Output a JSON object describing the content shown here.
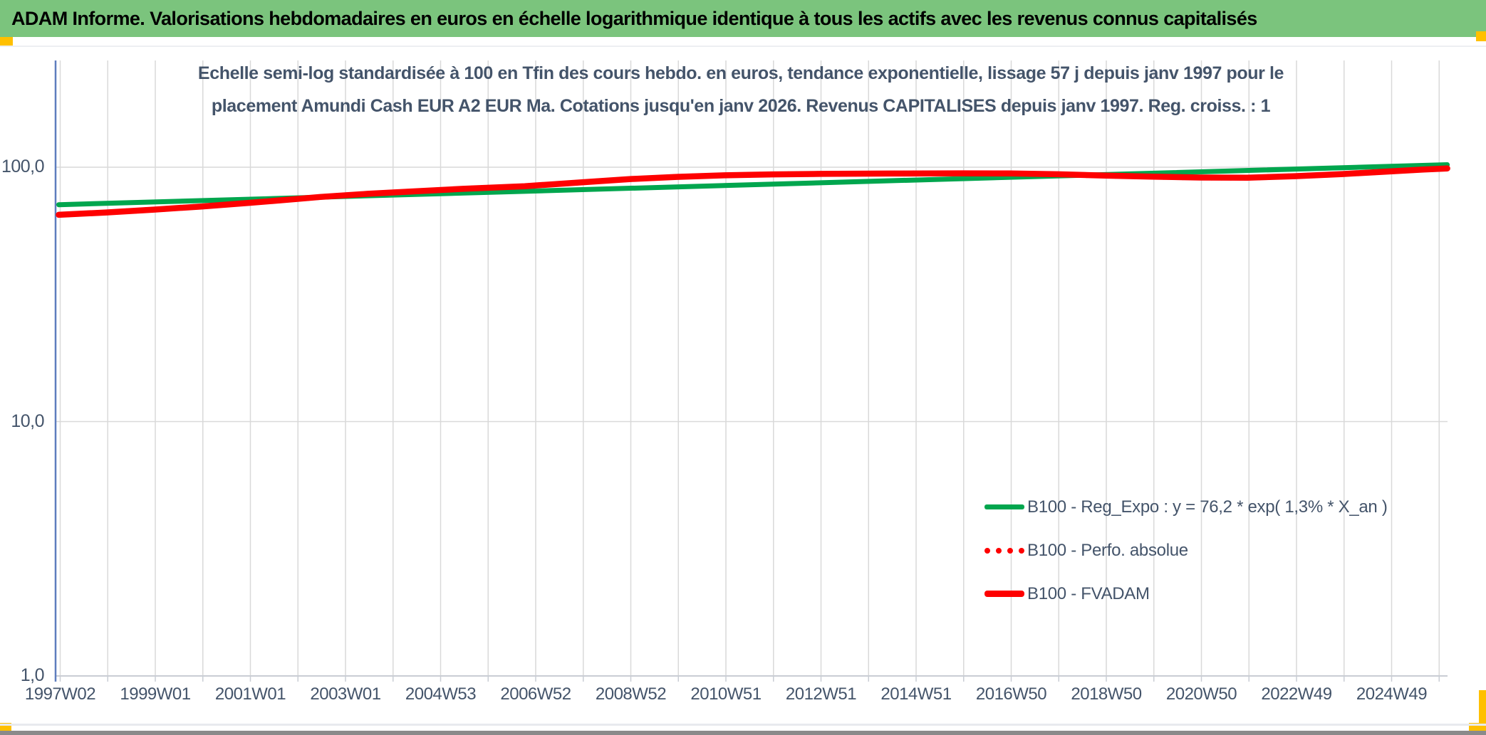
{
  "banner": {
    "text": "ADAM Informe. Valorisations hebdomadaires en euros en échelle logarithmique identique à tous les actifs avec les revenus connus capitalisés"
  },
  "header": {
    "title_line1": "Echelle semi-log standardisée à 100 en Tfin des cours hebdo. en euros, tendance exponentielle, lissage 57 j depuis janv 1997 pour le",
    "title_line2": "placement Amundi Cash EUR A2 EUR Ma. Cotations jusqu'en janv 2026. Revenus CAPITALISES depuis janv 1997. Reg. croiss. : 1"
  },
  "colors": {
    "banner_green": "#7BC47D",
    "accent_yellow": "#FFC000",
    "text_slate": "#44546A",
    "gridline": "#D9D9D9",
    "axis_blue": "#5E7DBE",
    "axis_gray": "#C9CDD4",
    "series_green": "#00A64E",
    "series_red": "#FE0000",
    "bottom_bar_gray": "#8A8A8A"
  },
  "chart_data": {
    "type": "line",
    "title": "Echelle semi-log standardisée à 100 en Tfin des cours hebdo. en euros, tendance exponentielle, lissage 57 j depuis janv 1997 pour le placement Amundi Cash EUR A2 EUR Ma. Cotations jusqu'en janv 2026. Revenus CAPITALISES depuis janv 1997. Reg. croiss. : 1",
    "xlabel": "",
    "ylabel": "",
    "grid": true,
    "legend_position": "inside-right-lower",
    "y_axis": {
      "scale": "log",
      "tick_labels": [
        "100,0",
        "10,0",
        "1,0"
      ],
      "tick_values": [
        100,
        10,
        1
      ],
      "range": [
        1,
        260
      ]
    },
    "x_axis": {
      "unit": "ISO week",
      "tick_labels": [
        "1997W02",
        "1999W01",
        "2001W01",
        "2003W01",
        "2004W53",
        "2006W52",
        "2008W52",
        "2010W51",
        "2012W51",
        "2014W51",
        "2016W50",
        "2018W50",
        "2020W50",
        "2022W49",
        "2024W49"
      ],
      "years_between_labels": 2,
      "range_years": [
        1996.93,
        2026.35
      ]
    },
    "series": [
      {
        "id": "reg-expo",
        "name": "B100 - Reg_Expo : y = 76,2 * exp( 1,3% *  X_an )",
        "color": "#00A64E",
        "style": "solid",
        "interpolation": "exponential",
        "points": [
          [
            1997.0,
            71.2
          ],
          [
            2026.2,
            102.3
          ]
        ]
      },
      {
        "id": "perfo-absolue",
        "name": "B100 - Perfo. absolue",
        "color": "#FE0000",
        "style": "dotted",
        "note": "coincides with B100 - FVADAM (hidden underneath)",
        "points": [
          [
            1997.0,
            65.0
          ],
          [
            1998.0,
            66.4
          ],
          [
            1999.0,
            68.1
          ],
          [
            2000.0,
            70.1
          ],
          [
            2001.0,
            72.4
          ],
          [
            2002.0,
            75.0
          ],
          [
            2002.5,
            76.4
          ],
          [
            2003.5,
            78.6
          ],
          [
            2004.5,
            80.4
          ],
          [
            2005.5,
            82.2
          ],
          [
            2006.8,
            84.2
          ],
          [
            2008.0,
            87.2
          ],
          [
            2009.0,
            89.8
          ],
          [
            2010.0,
            91.6
          ],
          [
            2011.0,
            92.9
          ],
          [
            2012.0,
            93.7
          ],
          [
            2013.0,
            94.1
          ],
          [
            2014.5,
            94.4
          ],
          [
            2016.0,
            94.6
          ],
          [
            2017.0,
            94.5
          ],
          [
            2018.0,
            93.8
          ],
          [
            2019.0,
            92.7
          ],
          [
            2020.0,
            91.8
          ],
          [
            2021.0,
            91.1
          ],
          [
            2022.0,
            90.9
          ],
          [
            2023.0,
            92.2
          ],
          [
            2024.0,
            94.0
          ],
          [
            2025.0,
            96.3
          ],
          [
            2025.7,
            97.9
          ],
          [
            2026.2,
            98.9
          ]
        ]
      },
      {
        "id": "fvadam",
        "name": "B100 - FVADAM",
        "color": "#FE0000",
        "style": "solid",
        "points": [
          [
            1997.0,
            65.0
          ],
          [
            1998.0,
            66.4
          ],
          [
            1999.0,
            68.1
          ],
          [
            2000.0,
            70.1
          ],
          [
            2001.0,
            72.4
          ],
          [
            2002.0,
            75.0
          ],
          [
            2002.5,
            76.4
          ],
          [
            2003.5,
            78.6
          ],
          [
            2004.5,
            80.4
          ],
          [
            2005.5,
            82.2
          ],
          [
            2006.8,
            84.2
          ],
          [
            2008.0,
            87.2
          ],
          [
            2009.0,
            89.8
          ],
          [
            2010.0,
            91.6
          ],
          [
            2011.0,
            92.9
          ],
          [
            2012.0,
            93.7
          ],
          [
            2013.0,
            94.1
          ],
          [
            2014.5,
            94.4
          ],
          [
            2016.0,
            94.6
          ],
          [
            2017.0,
            94.5
          ],
          [
            2018.0,
            93.8
          ],
          [
            2019.0,
            92.7
          ],
          [
            2020.0,
            91.8
          ],
          [
            2021.0,
            91.1
          ],
          [
            2022.0,
            90.9
          ],
          [
            2023.0,
            92.2
          ],
          [
            2024.0,
            94.0
          ],
          [
            2025.0,
            96.3
          ],
          [
            2025.7,
            97.9
          ],
          [
            2026.2,
            98.9
          ]
        ]
      }
    ]
  }
}
